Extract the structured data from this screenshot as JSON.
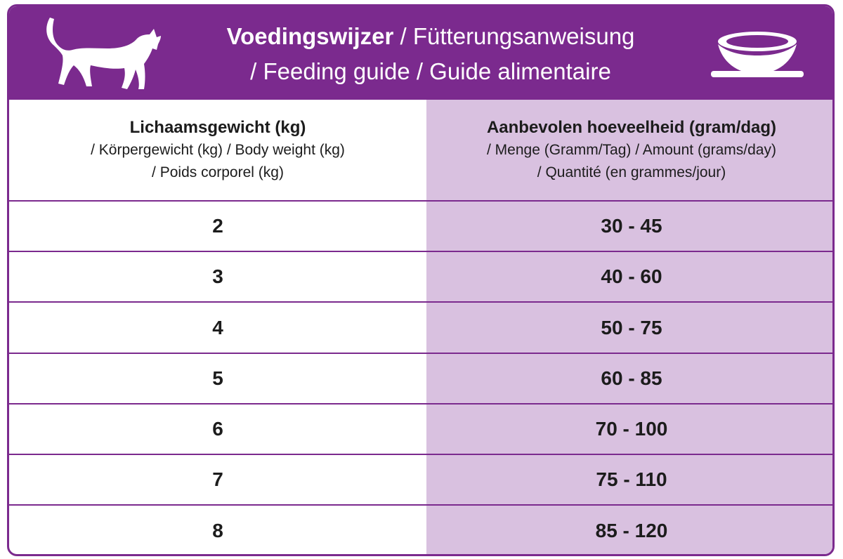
{
  "header": {
    "title_bold": "Voedingswijzer",
    "title_rest_line1": " / Fütterungsanweisung",
    "title_line2": "/ Feeding guide / Guide alimentaire",
    "colors": {
      "brand_purple": "#7b2a8e",
      "column_tint": "#d9c1e0"
    },
    "icons": [
      "cat-silhouette-icon",
      "food-bowl-icon"
    ]
  },
  "table": {
    "col1": {
      "main": "Lichaamsgewicht (kg)",
      "sub1": "/ Körpergewicht (kg) / Body weight (kg)",
      "sub2": "/ Poids corporel (kg)"
    },
    "col2": {
      "main": "Aanbevolen hoeveelheid (gram/dag)",
      "sub1": "/ Menge (Gramm/Tag) / Amount (grams/day)",
      "sub2": "/ Quantité (en grammes/jour)"
    },
    "rows": [
      {
        "weight": "2",
        "amount": "30 - 45"
      },
      {
        "weight": "3",
        "amount": "40 - 60"
      },
      {
        "weight": "4",
        "amount": "50 - 75"
      },
      {
        "weight": "5",
        "amount": "60 - 85"
      },
      {
        "weight": "6",
        "amount": "70 - 100"
      },
      {
        "weight": "7",
        "amount": "75 - 110"
      },
      {
        "weight": "8",
        "amount": "85 - 120"
      }
    ]
  }
}
